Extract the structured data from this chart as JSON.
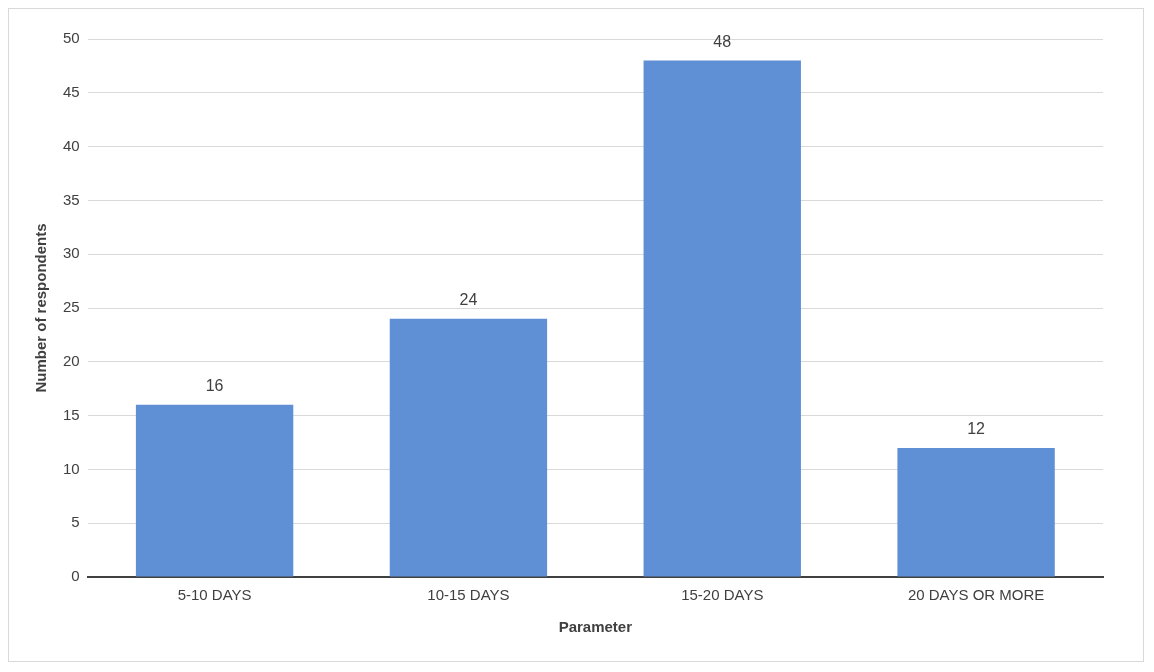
{
  "chart_data": {
    "type": "bar",
    "xlabel": "Parameter",
    "ylabel": "Number of respondents",
    "categories": [
      "5-10 DAYS",
      "10-15 DAYS",
      "15-20 DAYS",
      "20 DAYS OR MORE"
    ],
    "values": [
      16,
      24,
      48,
      12
    ],
    "color": "#5f8fd4",
    "ylim": [
      0,
      50
    ],
    "yticks": [
      0,
      5,
      10,
      15,
      20,
      25,
      30,
      35,
      40,
      45,
      50
    ],
    "grid": "y",
    "data_labels": true,
    "legend": false
  }
}
